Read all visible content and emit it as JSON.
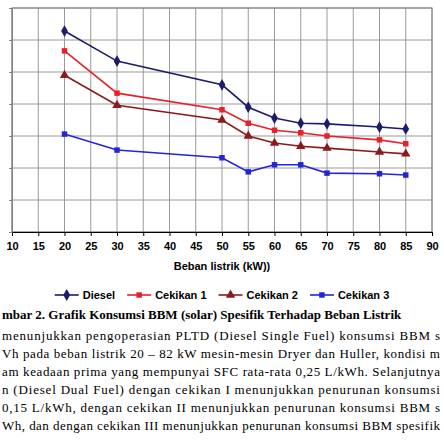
{
  "chart_data": {
    "type": "line",
    "x_label": "Beban listrik (kW))",
    "x": [
      20,
      30,
      50,
      55,
      60,
      65,
      70,
      80,
      85
    ],
    "xlim": [
      10,
      90
    ],
    "xticks": [
      10,
      15,
      20,
      25,
      30,
      35,
      40,
      45,
      50,
      55,
      60,
      65,
      70,
      75,
      80,
      85,
      90
    ],
    "ylim": [
      0,
      0.35
    ],
    "yticks": [
      0,
      0.05,
      0.1,
      0.15,
      0.2,
      0.25,
      0.3,
      0.35
    ],
    "grid": true,
    "tick_labels": "x",
    "legend": "bottom",
    "series": [
      {
        "name": "Diesel",
        "color": "#1c1c6b",
        "marker": "diamond",
        "values": [
          0.314,
          0.267,
          0.23,
          0.195,
          0.178,
          0.17,
          0.169,
          0.164,
          0.161
        ]
      },
      {
        "name": "Cekikan 1",
        "color": "#e8202a",
        "marker": "square",
        "values": [
          0.283,
          0.217,
          0.191,
          0.17,
          0.159,
          0.155,
          0.15,
          0.144,
          0.138
        ]
      },
      {
        "name": "Cekikan 2",
        "color": "#8b1a1a",
        "marker": "triangle",
        "values": [
          0.245,
          0.198,
          0.175,
          0.15,
          0.139,
          0.134,
          0.131,
          0.125,
          0.122
        ]
      },
      {
        "name": "Cekikan 3",
        "color": "#2424d8",
        "marker": "square",
        "values": [
          0.153,
          0.128,
          0.116,
          0.094,
          0.105,
          0.105,
          0.092,
          0.091,
          0.089
        ]
      }
    ]
  },
  "document": {
    "caption": "mbar 2. Grafik Konsumsi BBM (solar) Spesifik Terhadap Beban Listrik",
    "paragraph": [
      "menunjukkan pengoperasian PLTD (Diesel Single Fuel) konsumsi BBM s",
      "Vh pada beban listrik 20 – 82 kW mesin-mesin Dryer dan Huller, kondisi m",
      "am keadaan prima yang mempunyai SFC rata-rata 0,25 L/kWh. Selanjutnya",
      "n (Diesel Dual Fuel) dengan cekikan I menunjukkan penurunan konsumsi",
      "0,15 L/kWh, dengan cekikan II menunjukkan penurunan konsumsi BBM s",
      "Wh, dan dengan cekikan III menunjukkan penurunan konsumsi BBM spesifik"
    ]
  }
}
